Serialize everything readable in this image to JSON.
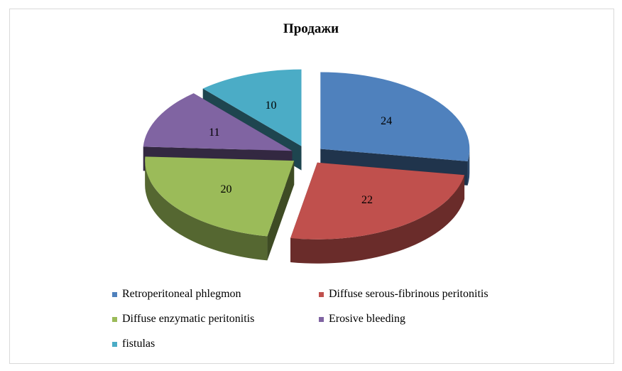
{
  "chart_data": {
    "type": "pie",
    "title": "Продажи",
    "categories": [
      "Retroperitoneal phlegmon",
      "Diffuse serous-fibrinous peritonitis",
      "Diffuse enzymatic peritonitis",
      "Erosive bleeding",
      "fistulas"
    ],
    "values": [
      24,
      22,
      20,
      11,
      10
    ],
    "colors": [
      "#4F81BD",
      "#C0504D",
      "#9BBB59",
      "#8064A2",
      "#4BACC6"
    ],
    "exploded": true,
    "legend_position": "bottom"
  }
}
